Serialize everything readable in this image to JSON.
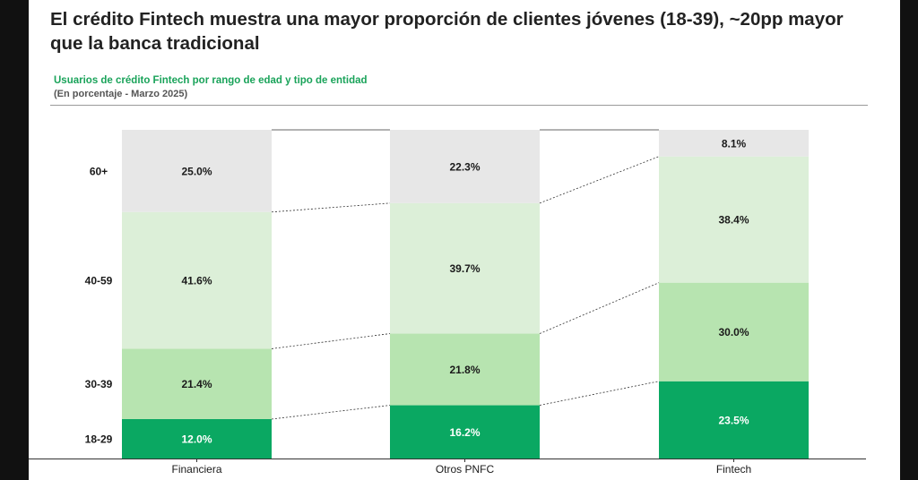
{
  "header": {
    "title": "El crédito Fintech muestra una mayor proporción de clientes jóvenes (18-39), ~20pp mayor que la banca tradicional",
    "subtitle": "Usuarios de crédito Fintech por rango de edad y tipo de entidad",
    "note": "(En porcentaje - Marzo 2025)"
  },
  "colors": {
    "18-29": "#0aa862",
    "30-39": "#b7e4b0",
    "40-59": "#dcefd8",
    "60+": "#e7e7e7"
  },
  "chart_data": {
    "type": "bar",
    "stacked": true,
    "categories": [
      "Financiera",
      "Otros PNFC",
      "Fintech"
    ],
    "series": [
      {
        "name": "18-29",
        "values": [
          12.0,
          16.2,
          23.5
        ]
      },
      {
        "name": "30-39",
        "values": [
          21.4,
          21.8,
          30.0
        ]
      },
      {
        "name": "40-59",
        "values": [
          41.6,
          39.7,
          38.4
        ]
      },
      {
        "name": "60+",
        "values": [
          25.0,
          22.3,
          8.1
        ]
      }
    ],
    "labels": [
      [
        "12.0%",
        "16.2%",
        "23.5%"
      ],
      [
        "21.4%",
        "21.8%",
        "30.0%"
      ],
      [
        "41.6%",
        "39.7%",
        "38.4%"
      ],
      [
        "25.0%",
        "22.3%",
        "8.1%"
      ]
    ],
    "ylim": [
      0,
      100
    ],
    "legend": "left, category labels beside first bar",
    "connector_lines": "dotted between stacked segment boundaries"
  }
}
